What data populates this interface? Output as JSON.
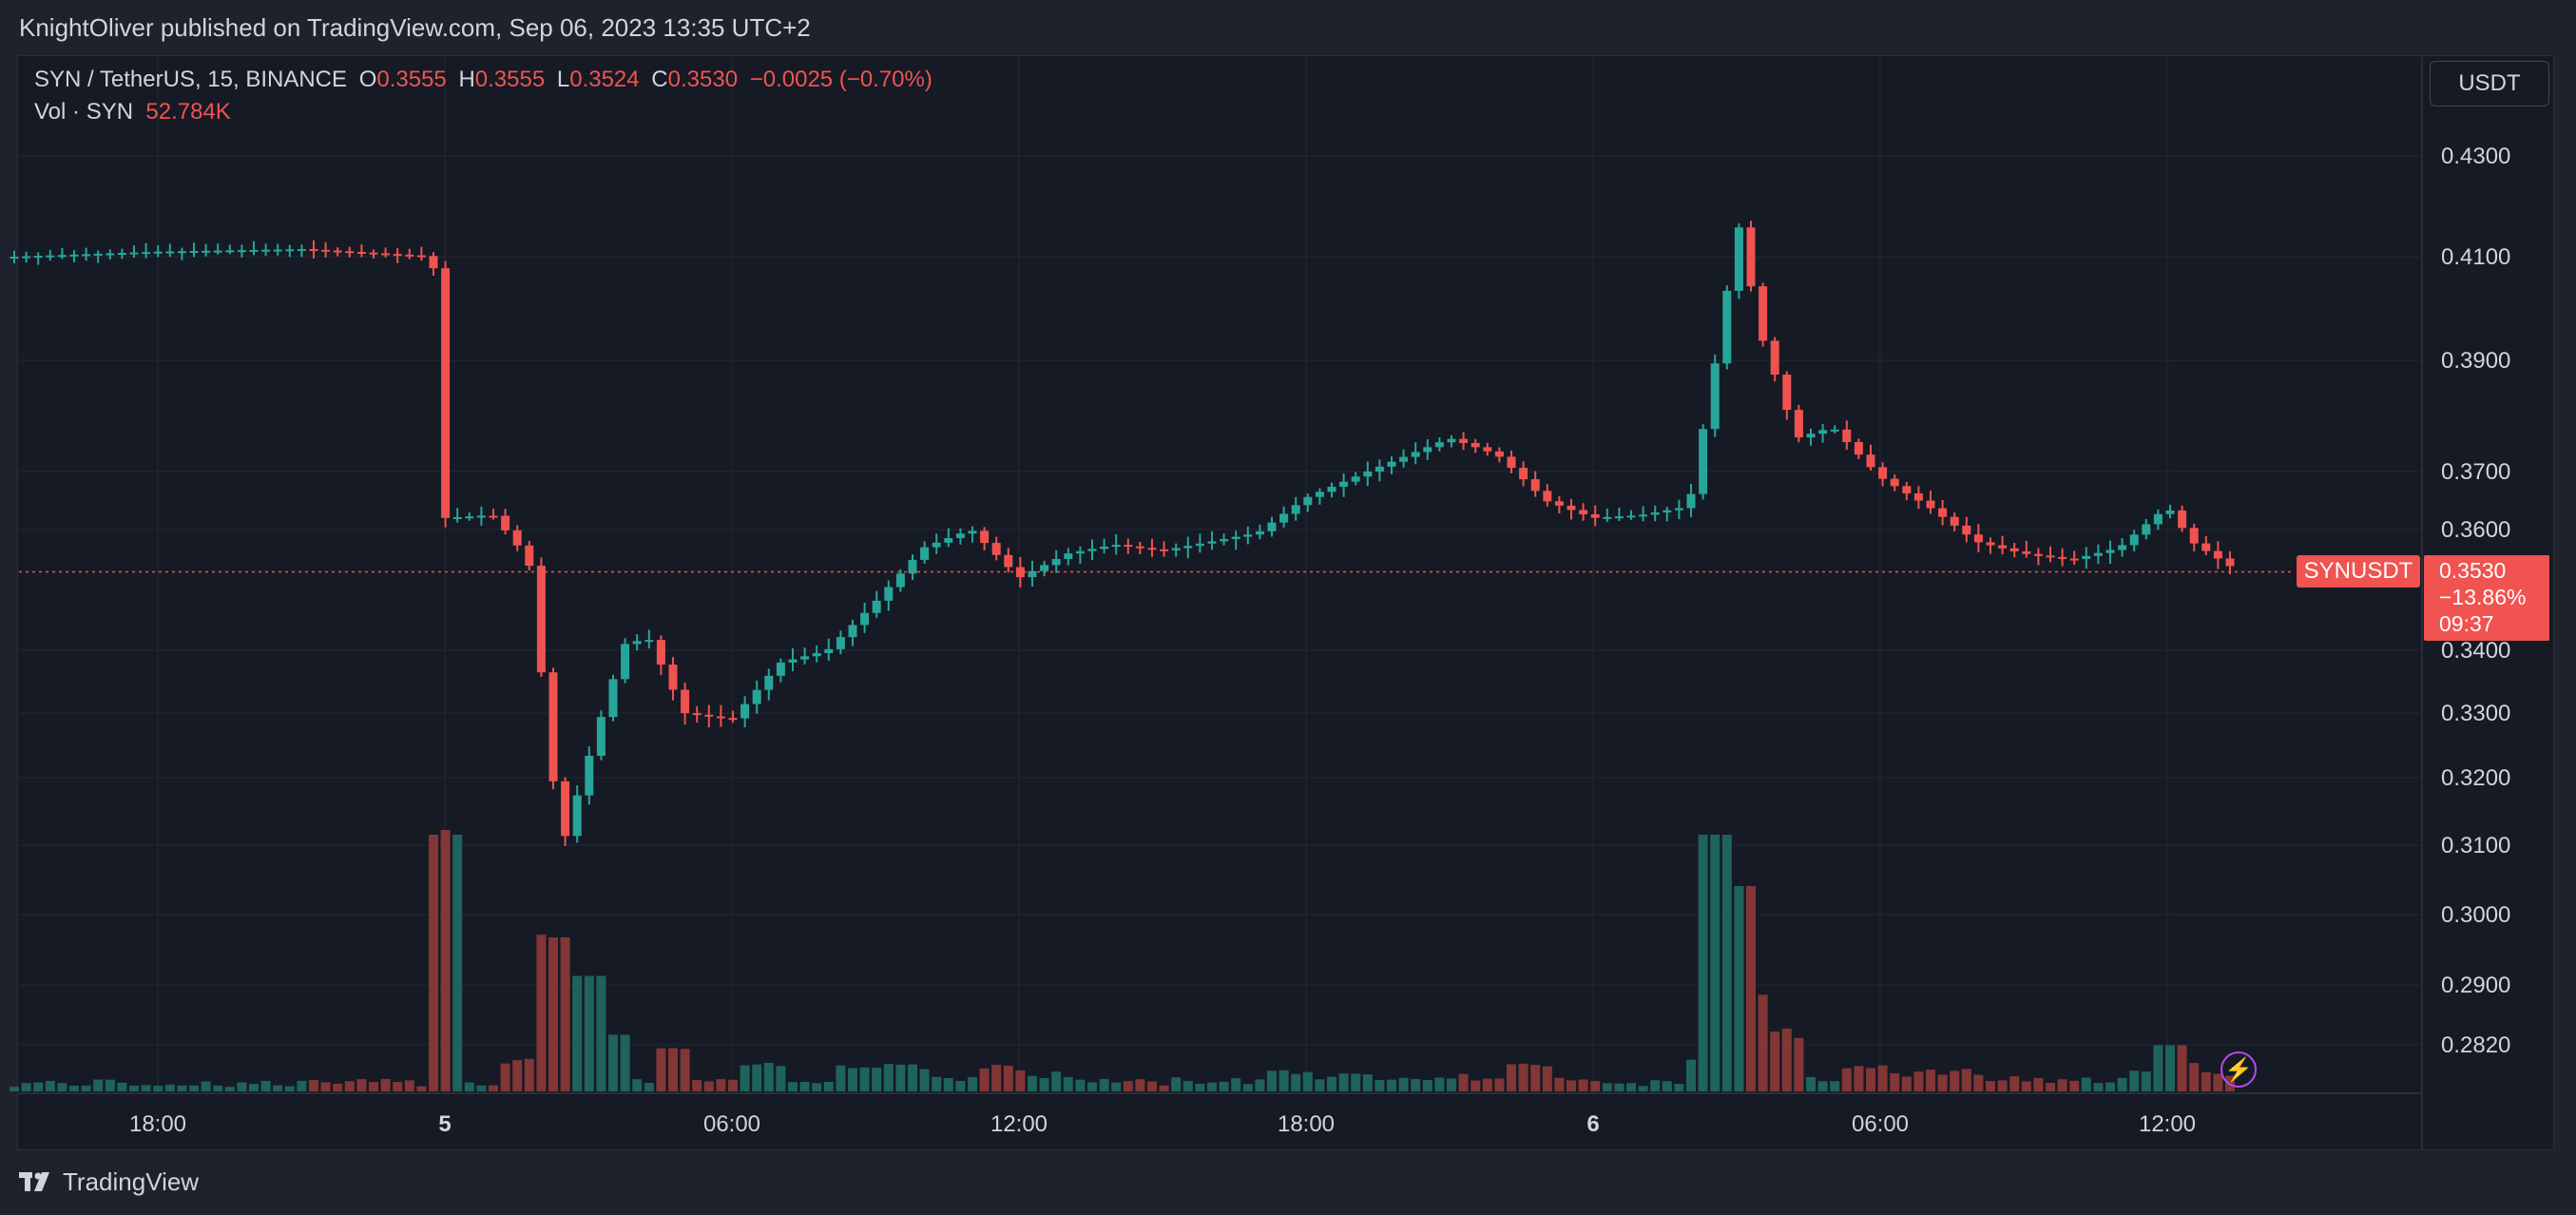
{
  "header": {
    "published": "KnightOliver published on TradingView.com, Sep 06, 2023 13:35 UTC+2"
  },
  "legend": {
    "symbol": "SYN / TetherUS, 15, BINANCE",
    "open_label": "O",
    "open": "0.3555",
    "high_label": "H",
    "high": "0.3555",
    "low_label": "L",
    "low": "0.3524",
    "close_label": "C",
    "close": "0.3530",
    "change": "−0.0025 (−0.70%)",
    "volume_label": "Vol · SYN",
    "volume": "52.784K"
  },
  "currency_button": "USDT",
  "price_tag": {
    "symbol": "SYNUSDT",
    "price": "0.3530",
    "change": "−13.86%",
    "countdown": "09:37"
  },
  "footer": {
    "brand": "TradingView",
    "logo_icon": "tradingview-logo-icon"
  },
  "colors": {
    "up": "#26a69a",
    "down": "#ef5350",
    "background": "#161a25",
    "grid": "#242834",
    "text": "#d1d4dc"
  },
  "chart_data": {
    "type": "candlestick",
    "symbol": "SYN / TetherUS",
    "interval": "15",
    "exchange": "BINANCE",
    "y_ticks": [
      "0.4300",
      "0.4100",
      "0.3900",
      "0.3700",
      "0.3600",
      "0.3400",
      "0.3300",
      "0.3200",
      "0.3100",
      "0.3000",
      "0.2900",
      "0.2820"
    ],
    "x_ticks": [
      "18:00",
      "5",
      "06:00",
      "12:00",
      "18:00",
      "6",
      "06:00",
      "12:00"
    ],
    "last_price": 0.353,
    "price_series": [
      {
        "time": "Sep 4 15:00",
        "close": 0.41
      },
      {
        "time": "Sep 4 18:00",
        "close": 0.411
      },
      {
        "time": "Sep 4 21:00",
        "close": 0.4115
      },
      {
        "time": "Sep 4 23:45",
        "close": 0.41
      },
      {
        "time": "Sep 5 00:00",
        "close": 0.362
      },
      {
        "time": "Sep 5 01:00",
        "close": 0.3625
      },
      {
        "time": "Sep 5 01:45",
        "close": 0.355
      },
      {
        "time": "Sep 5 02:15",
        "close": 0.32
      },
      {
        "time": "Sep 5 02:30",
        "close": 0.311
      },
      {
        "time": "Sep 5 03:00",
        "close": 0.323
      },
      {
        "time": "Sep 5 03:45",
        "close": 0.341
      },
      {
        "time": "Sep 5 04:15",
        "close": 0.342
      },
      {
        "time": "Sep 5 05:00",
        "close": 0.33
      },
      {
        "time": "Sep 5 06:00",
        "close": 0.329
      },
      {
        "time": "Sep 5 07:00",
        "close": 0.338
      },
      {
        "time": "Sep 5 08:00",
        "close": 0.34
      },
      {
        "time": "Sep 5 09:00",
        "close": 0.348
      },
      {
        "time": "Sep 5 10:00",
        "close": 0.357
      },
      {
        "time": "Sep 5 11:00",
        "close": 0.36
      },
      {
        "time": "Sep 5 12:00",
        "close": 0.352
      },
      {
        "time": "Sep 5 13:00",
        "close": 0.356
      },
      {
        "time": "Sep 5 14:00",
        "close": 0.3575
      },
      {
        "time": "Sep 5 15:00",
        "close": 0.3565
      },
      {
        "time": "Sep 5 16:00",
        "close": 0.358
      },
      {
        "time": "Sep 5 17:00",
        "close": 0.3595
      },
      {
        "time": "Sep 5 18:00",
        "close": 0.3655
      },
      {
        "time": "Sep 5 19:00",
        "close": 0.369
      },
      {
        "time": "Sep 5 20:00",
        "close": 0.3725
      },
      {
        "time": "Sep 5 21:00",
        "close": 0.376
      },
      {
        "time": "Sep 5 22:00",
        "close": 0.373
      },
      {
        "time": "Sep 5 23:00",
        "close": 0.365
      },
      {
        "time": "Sep 6 00:00",
        "close": 0.362
      },
      {
        "time": "Sep 6 01:00",
        "close": 0.3625
      },
      {
        "time": "Sep 6 02:00",
        "close": 0.364
      },
      {
        "time": "Sep 6 02:30",
        "close": 0.387
      },
      {
        "time": "Sep 6 02:45",
        "close": 0.4
      },
      {
        "time": "Sep 6 03:00",
        "close": 0.418
      },
      {
        "time": "Sep 6 03:30",
        "close": 0.395
      },
      {
        "time": "Sep 6 04:15",
        "close": 0.376
      },
      {
        "time": "Sep 6 05:00",
        "close": 0.378
      },
      {
        "time": "Sep 6 06:00",
        "close": 0.369
      },
      {
        "time": "Sep 6 07:00",
        "close": 0.364
      },
      {
        "time": "Sep 6 08:00",
        "close": 0.358
      },
      {
        "time": "Sep 6 09:00",
        "close": 0.356
      },
      {
        "time": "Sep 6 10:00",
        "close": 0.355
      },
      {
        "time": "Sep 6 11:00",
        "close": 0.357
      },
      {
        "time": "Sep 6 12:00",
        "close": 0.364
      },
      {
        "time": "Sep 6 12:30",
        "close": 0.358
      },
      {
        "time": "Sep 6 13:30",
        "close": 0.353
      }
    ],
    "volume_spikes": [
      {
        "time": "Sep 5 00:00",
        "relative": 1.0
      },
      {
        "time": "Sep 5 02:15",
        "relative": 0.6
      },
      {
        "time": "Sep 5 03:00",
        "relative": 0.45
      },
      {
        "time": "Sep 6 02:30",
        "relative": 1.0
      },
      {
        "time": "Sep 6 03:00",
        "relative": 0.8
      },
      {
        "time": "Sep 6 12:00",
        "relative": 0.18
      }
    ]
  }
}
